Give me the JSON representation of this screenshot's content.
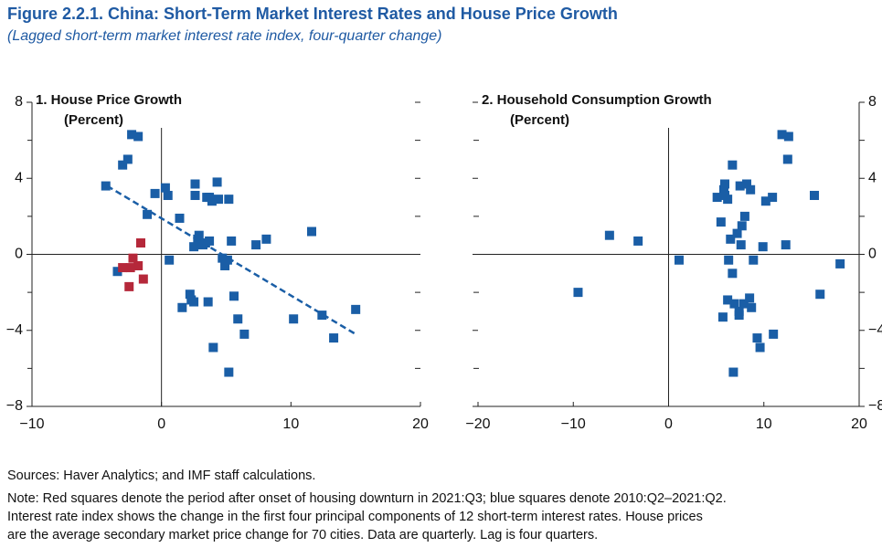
{
  "header": {
    "title": "Figure 2.2.1. China: Short-Term Market Interest Rates and House Price Growth",
    "subtitle": "(Lagged short-term market interest rate index, four-quarter change)"
  },
  "footer": {
    "sources": "Sources: Haver Analytics; and IMF staff calculations.",
    "note": [
      "Note: Red squares denote the period after onset of housing downturn in 2021:Q3; blue squares denote 2010:Q2–2021:Q2.",
      "Interest rate index shows the change in the first four principal components of 12 short-term interest rates. House prices",
      "are the average secondary market price change for 70 cities. Data are quarterly. Lag is four quarters."
    ]
  },
  "chart_data": [
    {
      "type": "scatter",
      "title": "1. House Price Growth",
      "subtitle": "(Percent)",
      "xlim": [
        -10,
        20
      ],
      "xticks": [
        {
          "value": -10,
          "label": "−10"
        },
        0,
        10,
        20
      ],
      "ylim": [
        -8,
        8
      ],
      "yticks": [
        8,
        4,
        0,
        {
          "value": -4,
          "label": "−4"
        },
        {
          "value": -8,
          "label": "−8"
        }
      ],
      "minor_yticks": [
        6,
        2,
        -2,
        -6
      ],
      "ytick_side": "left",
      "series": [
        {
          "color": "#1a5ea6",
          "x": [
            -4.3,
            -3.0,
            -2.6,
            -2.3,
            -1.8,
            -1.1,
            -0.5,
            0.3,
            0.5,
            0.6,
            1.4,
            1.6,
            2.2,
            2.3,
            2.5,
            2.5,
            2.6,
            2.6,
            2.8,
            2.9,
            3.2,
            3.4,
            3.5,
            3.6,
            3.7,
            3.7,
            3.9,
            4.0,
            4.3,
            4.4,
            4.7,
            4.9,
            5.1,
            5.2,
            5.2,
            5.4,
            5.6,
            5.9,
            6.4,
            7.3,
            8.1,
            10.2,
            11.6,
            12.4,
            13.3,
            15.0,
            -3.4
          ],
          "values": [
            3.6,
            4.7,
            5.0,
            6.3,
            6.2,
            2.1,
            3.2,
            3.5,
            3.1,
            -0.3,
            1.9,
            -2.8,
            -2.1,
            -2.4,
            -2.5,
            0.4,
            3.1,
            3.7,
            0.8,
            1.0,
            0.5,
            0.6,
            3.0,
            -2.5,
            0.7,
            3.0,
            2.8,
            -4.9,
            3.8,
            2.9,
            -0.2,
            -0.6,
            -0.3,
            2.9,
            -6.2,
            0.7,
            -2.2,
            -3.4,
            -4.2,
            0.5,
            0.8,
            -3.4,
            1.2,
            -3.2,
            -4.4,
            -2.9,
            -0.9
          ]
        },
        {
          "color": "#b5283a",
          "x": [
            -1.6,
            -2.2,
            -3.0,
            -1.8,
            -2.4,
            -1.4,
            -2.5
          ],
          "values": [
            0.6,
            -0.2,
            -0.7,
            -0.6,
            -0.7,
            -1.3,
            -1.7
          ]
        }
      ],
      "trendline": {
        "color": "#1a5ea6",
        "x": [
          -4.2,
          15
        ],
        "y": [
          3.6,
          -4.2
        ]
      }
    },
    {
      "type": "scatter",
      "title": "2. Household Consumption Growth",
      "subtitle": "(Percent)",
      "xlim": [
        -20,
        20
      ],
      "xticks": [
        {
          "value": -20,
          "label": "−20"
        },
        {
          "value": -10,
          "label": "−10"
        },
        0,
        10,
        20
      ],
      "ylim": [
        -8,
        8
      ],
      "yticks": [
        8,
        4,
        0,
        {
          "value": -4,
          "label": "−4"
        },
        {
          "value": -8,
          "label": "−8"
        }
      ],
      "minor_yticks": [
        6,
        2,
        -2,
        -6
      ],
      "ytick_side": "right",
      "series": [
        {
          "color": "#1a5ea6",
          "x": [
            -9.5,
            -6.2,
            -3.2,
            1.1,
            5.1,
            5.5,
            5.7,
            5.8,
            5.9,
            5.9,
            6.2,
            6.2,
            6.3,
            6.5,
            6.7,
            6.7,
            6.8,
            6.9,
            7.2,
            7.4,
            7.4,
            7.5,
            7.6,
            7.7,
            7.9,
            8.0,
            8.2,
            8.5,
            8.6,
            8.7,
            8.9,
            9.3,
            9.6,
            9.9,
            10.2,
            10.9,
            11.0,
            11.9,
            12.3,
            12.5,
            12.6,
            15.3,
            15.9,
            18.0
          ],
          "values": [
            -2.0,
            1.0,
            0.7,
            -0.3,
            3.0,
            1.7,
            -3.3,
            3.4,
            3.7,
            3.1,
            2.9,
            -2.4,
            -0.3,
            0.8,
            4.7,
            -1.0,
            -6.2,
            -2.6,
            1.1,
            -3.0,
            -3.2,
            3.6,
            0.5,
            1.5,
            -2.6,
            2.0,
            3.7,
            -2.3,
            3.4,
            -2.8,
            -0.3,
            -4.4,
            -4.9,
            0.4,
            2.8,
            3.0,
            -4.2,
            6.3,
            0.5,
            5.0,
            6.2,
            3.1,
            -2.1,
            -0.5
          ]
        }
      ]
    }
  ]
}
